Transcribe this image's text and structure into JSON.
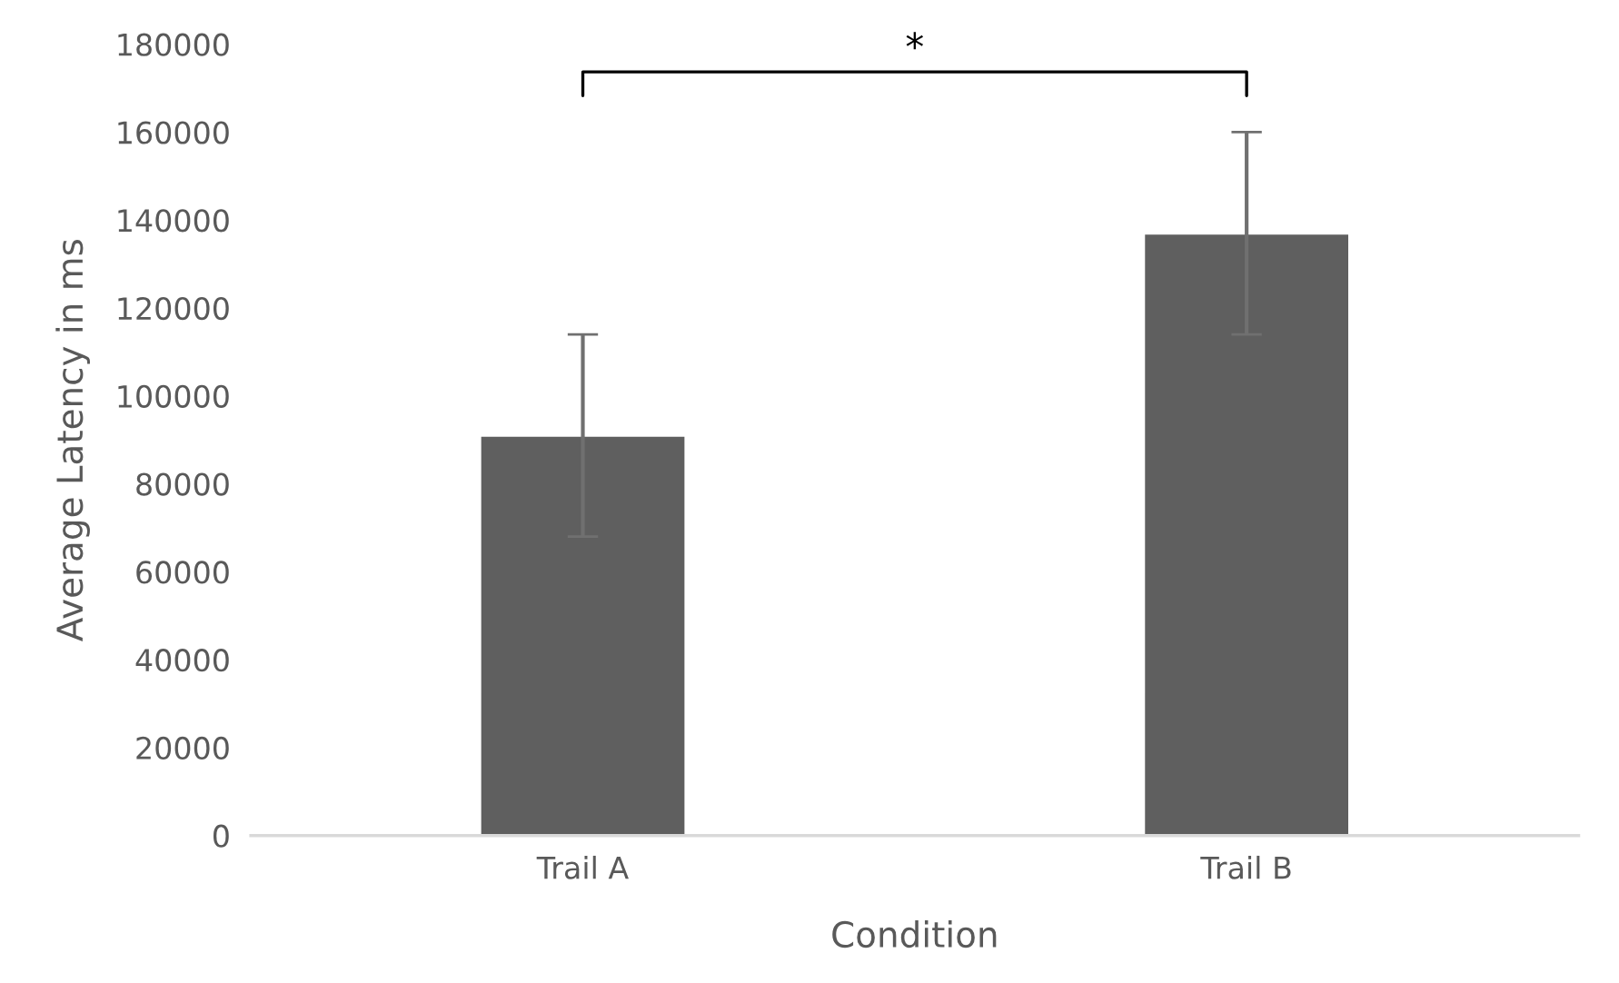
{
  "chart_data": {
    "type": "bar",
    "xlabel": "Condition",
    "ylabel": "Average Latency in ms",
    "categories": [
      "Trail A",
      "Trail B"
    ],
    "series": [
      {
        "color": "#5f5f5f",
        "values": [
          91000,
          137000
        ],
        "errors": [
          23000,
          23000
        ]
      }
    ],
    "ylim": [
      0,
      180000
    ],
    "yticks": [
      0,
      20000,
      40000,
      60000,
      80000,
      100000,
      120000,
      140000,
      160000,
      180000
    ],
    "grid": false,
    "legend": false,
    "annotations": [
      "*"
    ]
  }
}
